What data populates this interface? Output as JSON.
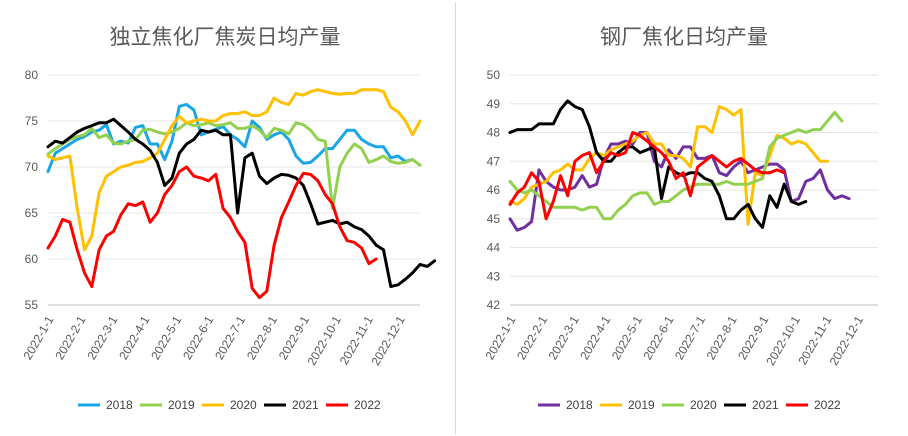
{
  "chart_data": [
    {
      "type": "line",
      "title": "独立焦化厂焦炭日均产量",
      "xlabel": "",
      "ylabel": "",
      "ylim": [
        55,
        80
      ],
      "yticks": [
        55,
        60,
        65,
        70,
        75,
        80
      ],
      "x_tick_labels": [
        "2022-1-1",
        "2022-2-1",
        "2022-3-1",
        "2022-4-1",
        "2022-5-1",
        "2022-6-1",
        "2022-7-1",
        "2022-8-1",
        "2022-9-1",
        "2022-10-1",
        "2022-11-1",
        "2022-12-1"
      ],
      "x_count": 52,
      "grid": "horizontal",
      "legend": "bottom",
      "series": [
        {
          "name": "2018",
          "color": "#1aa6e6",
          "width": 3,
          "values": [
            69.5,
            71.5,
            72,
            72.5,
            73,
            73.3,
            73.8,
            74,
            74.6,
            72.5,
            72.8,
            72.6,
            74.3,
            74.5,
            72.5,
            72.5,
            70.8,
            72.8,
            76.6,
            76.8,
            76.2,
            73.5,
            73.8,
            74.1,
            74.4,
            73.5,
            73.0,
            72.2,
            75.0,
            74.3,
            73.0,
            73.5,
            73.8,
            73.0,
            71.2,
            70.4,
            70.5,
            71.2,
            72.0,
            72.0,
            73.0,
            74.0,
            74.0,
            73.0,
            72.5,
            72.2,
            72.2,
            71.0,
            71.2,
            70.6,
            70.8
          ]
        },
        {
          "name": "2019",
          "color": "#92d050",
          "width": 3,
          "values": [
            71.4,
            72,
            72.5,
            73,
            73.3,
            73.5,
            74.2,
            73.2,
            73.5,
            72.6,
            72.5,
            72.8,
            73.0,
            74.0,
            74.1,
            73.8,
            73.6,
            73.8,
            74.2,
            74.8,
            74.5,
            74.6,
            74.8,
            74.5,
            74.6,
            74.8,
            74.2,
            74.2,
            74.5,
            74.0,
            73.2,
            74.2,
            74.0,
            73.6,
            74.8,
            74.6,
            74.0,
            73.0,
            72.8,
            65.5,
            70.0,
            71.5,
            72.5,
            72.0,
            70.5,
            70.8,
            71.2,
            70.6,
            70.4,
            70.5,
            70.8,
            70.2
          ]
        },
        {
          "name": "2020",
          "color": "#ffc000",
          "width": 3,
          "values": [
            71.2,
            70.8,
            71.0,
            71.2,
            65.5,
            61.0,
            62.5,
            67.2,
            69.0,
            69.5,
            70.0,
            70.2,
            70.5,
            70.6,
            71.0,
            71.5,
            73.0,
            74.5,
            75.5,
            74.8,
            75.0,
            75.2,
            75.0,
            75.0,
            75.6,
            75.8,
            75.8,
            76.0,
            75.6,
            75.6,
            76.0,
            77.5,
            77.0,
            76.8,
            78.0,
            77.8,
            78.2,
            78.4,
            78.2,
            78.0,
            77.9,
            78.0,
            78.0,
            78.4,
            78.4,
            78.4,
            78.2,
            76.5,
            76.0,
            75.0,
            73.5,
            75.0
          ]
        },
        {
          "name": "2021",
          "color": "#000000",
          "width": 3,
          "values": [
            72.2,
            72.8,
            72.6,
            73.2,
            73.8,
            74.2,
            74.5,
            74.8,
            74.8,
            75.2,
            74.5,
            73.8,
            73.0,
            72.5,
            71.8,
            70.5,
            68.0,
            68.8,
            71.5,
            72.5,
            73.0,
            74.0,
            73.8,
            74.0,
            73.5,
            73.5,
            65.0,
            71.0,
            71.5,
            69.0,
            68.2,
            68.8,
            69.2,
            69.1,
            68.8,
            68.0,
            66.0,
            63.8,
            64.0,
            64.2,
            63.8,
            64.0,
            63.5,
            63.2,
            62.5,
            61.5,
            61.0,
            57.0,
            57.2,
            57.8,
            58.5,
            59.4,
            59.2,
            59.8
          ]
        },
        {
          "name": "2022",
          "color": "#ff0000",
          "width": 3,
          "values": [
            61.2,
            62.5,
            64.3,
            64.0,
            61.0,
            58.5,
            57.0,
            61.0,
            62.5,
            63.0,
            64.8,
            66.0,
            65.8,
            66.2,
            64.0,
            65.0,
            67.0,
            68.0,
            69.5,
            70.0,
            69.0,
            68.8,
            68.5,
            69.2,
            65.5,
            64.5,
            63.0,
            61.8,
            56.8,
            55.8,
            56.5,
            61.5,
            64.5,
            66.2,
            68.0,
            69.3,
            69.2,
            68.5,
            67.0,
            66.0,
            63.5,
            62.0,
            61.8,
            61.2,
            59.5,
            60.0
          ]
        }
      ]
    },
    {
      "type": "line",
      "title": "钢厂焦化日均产量",
      "xlabel": "",
      "ylabel": "",
      "ylim": [
        42,
        50
      ],
      "yticks": [
        42,
        43,
        44,
        45,
        46,
        47,
        48,
        49,
        50
      ],
      "x_tick_labels": [
        "2022-1-1",
        "2022-2-1",
        "2022-3-1",
        "2022-4-1",
        "2022-5-1",
        "2022-6-1",
        "2022-7-1",
        "2022-8-1",
        "2022-9-1",
        "2022-10-1",
        "2022-11-1",
        "2022-12-1"
      ],
      "x_count": 52,
      "grid": "horizontal",
      "legend": "bottom",
      "series": [
        {
          "name": "2018",
          "color": "#7030a0",
          "width": 3,
          "values": [
            45.0,
            44.6,
            44.7,
            44.9,
            46.7,
            46.3,
            46.1,
            46.0,
            46.0,
            46.1,
            46.5,
            46.1,
            46.2,
            47.1,
            47.6,
            47.6,
            47.7,
            47.6,
            48.0,
            48.0,
            47.0,
            46.8,
            47.4,
            47.1,
            47.5,
            47.5,
            47.1,
            47.1,
            47.2,
            46.6,
            46.5,
            46.8,
            47.0,
            46.6,
            46.7,
            46.8,
            46.9,
            46.9,
            46.7,
            45.6,
            45.7,
            46.3,
            46.4,
            46.7,
            46.0,
            45.7,
            45.8,
            45.7
          ]
        },
        {
          "name": "2019",
          "color": "#ffc000",
          "width": 3,
          "values": [
            45.6,
            45.5,
            45.7,
            46.1,
            46.2,
            46.3,
            46.6,
            46.7,
            46.9,
            46.7,
            46.7,
            47.1,
            47.3,
            47.2,
            47.4,
            47.5,
            47.6,
            47.7,
            47.9,
            48.0,
            47.6,
            47.6,
            47.2,
            47.2,
            47.1,
            46.8,
            48.2,
            48.2,
            48.0,
            48.9,
            48.8,
            48.6,
            48.8,
            44.8,
            46.6,
            46.5,
            47.2,
            47.9,
            47.8,
            47.6,
            47.7,
            47.6,
            47.3,
            47.0,
            47.0
          ]
        },
        {
          "name": "2020",
          "color": "#92d050",
          "width": 3,
          "values": [
            46.3,
            46.0,
            45.9,
            46.0,
            45.8,
            45.6,
            45.4,
            45.4,
            45.4,
            45.4,
            45.3,
            45.4,
            45.4,
            45.0,
            45.0,
            45.3,
            45.5,
            45.8,
            45.9,
            45.9,
            45.5,
            45.6,
            45.6,
            45.8,
            46.0,
            46.1,
            46.2,
            46.2,
            46.2,
            46.2,
            46.3,
            46.2,
            46.2,
            46.2,
            46.3,
            46.4,
            47.5,
            47.8,
            47.9,
            48.0,
            48.1,
            48.0,
            48.1,
            48.1,
            48.4,
            48.7,
            48.4
          ]
        },
        {
          "name": "2021",
          "color": "#000000",
          "width": 3,
          "values": [
            48.0,
            48.1,
            48.1,
            48.1,
            48.3,
            48.3,
            48.3,
            48.8,
            49.1,
            48.9,
            48.8,
            48.2,
            47.3,
            47.0,
            47.0,
            47.3,
            47.5,
            47.5,
            47.3,
            47.4,
            47.5,
            45.7,
            46.8,
            46.6,
            46.5,
            46.6,
            46.6,
            46.4,
            46.3,
            45.8,
            45.0,
            45.0,
            45.3,
            45.5,
            45.0,
            44.7,
            45.8,
            45.4,
            46.2,
            45.6,
            45.5,
            45.6
          ]
        },
        {
          "name": "2022",
          "color": "#ff0000",
          "width": 3,
          "values": [
            45.5,
            45.9,
            46.1,
            46.6,
            46.3,
            45.0,
            45.6,
            46.5,
            45.8,
            47.0,
            47.2,
            47.3,
            46.6,
            47.0,
            47.3,
            47.2,
            47.3,
            48.0,
            47.9,
            47.7,
            47.5,
            47.3,
            47.0,
            46.4,
            46.6,
            45.8,
            46.8,
            47.0,
            47.2,
            47.0,
            46.8,
            47.0,
            47.1,
            46.9,
            46.7,
            46.6,
            46.6,
            46.7,
            46.6
          ]
        }
      ]
    }
  ]
}
